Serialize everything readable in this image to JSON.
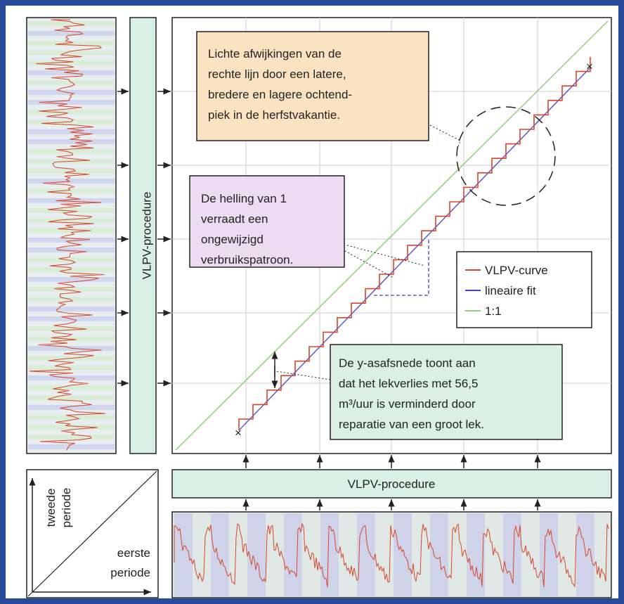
{
  "annotations": [
    {
      "lines": [
        "Lichte afwijkingen van de",
        "rechte lijn door een latere,",
        "bredere en lagere ochtend-",
        "piek in de herfstvakantie."
      ]
    },
    {
      "lines": [
        "De helling van 1",
        "verraadt een",
        "ongewijzigd",
        "verbruikspatroon."
      ]
    },
    {
      "lines": [
        "De y-asafsnede toont aan",
        "dat het lekverlies met 56,5",
        "m³/uur is verminderd door",
        "reparatie van een groot lek."
      ]
    }
  ],
  "legend": [
    "VLPV-curve",
    "lineaire fit",
    "1:1"
  ],
  "procedure_vertical": "VLPV-procedure",
  "procedure_horizontal": "VLPV-procedure",
  "axis_key": {
    "y_label": [
      "tweede",
      "periode"
    ],
    "x_label": [
      "eerste",
      "periode"
    ]
  }
}
